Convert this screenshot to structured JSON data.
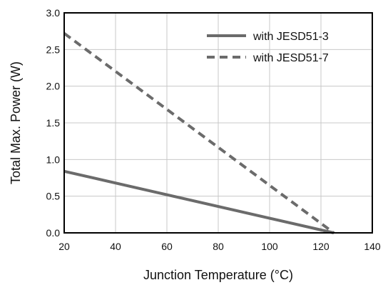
{
  "chart_data": {
    "type": "line",
    "xlabel": "Junction Temperature (°C)",
    "ylabel": "Total Max. Power (W)",
    "xlim": [
      20,
      140
    ],
    "ylim": [
      0,
      3.0
    ],
    "x_ticks": [
      "20",
      "40",
      "60",
      "80",
      "100",
      "120",
      "140"
    ],
    "y_ticks": [
      "0.0",
      "0.5",
      "1.0",
      "1.5",
      "2.0",
      "2.5",
      "3.0"
    ],
    "grid": true,
    "legend_position": "top-right",
    "series": [
      {
        "name": "with JESD51-3",
        "style": "solid",
        "color": "#6b6b6b",
        "x": [
          20,
          125
        ],
        "y": [
          0.84,
          0.0
        ]
      },
      {
        "name": "with JESD51-7",
        "style": "dashed",
        "color": "#6b6b6b",
        "x": [
          20,
          125
        ],
        "y": [
          2.72,
          0.0
        ]
      }
    ]
  }
}
